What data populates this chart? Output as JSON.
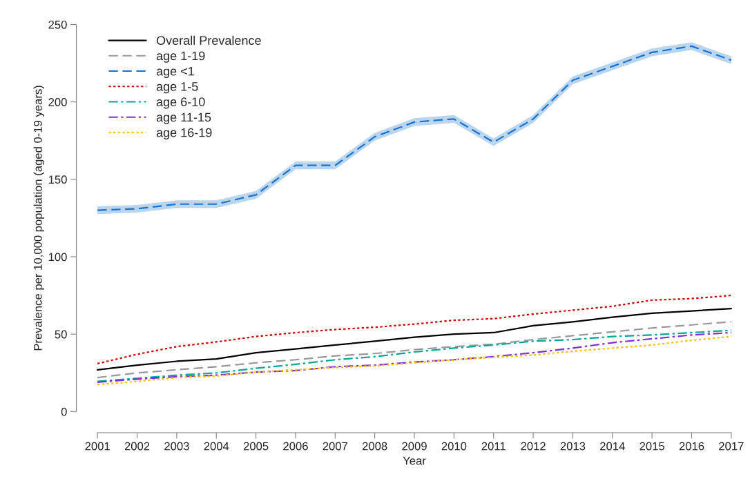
{
  "chart_data": {
    "type": "line",
    "xlabel": "Year",
    "ylabel": "Prevalence per 10,000 population (aged 0-19 years)",
    "x": [
      2001,
      2002,
      2003,
      2004,
      2005,
      2006,
      2007,
      2008,
      2009,
      2010,
      2011,
      2012,
      2013,
      2014,
      2015,
      2016,
      2017
    ],
    "xlim": [
      2001,
      2017
    ],
    "xticks": [
      2001,
      2002,
      2003,
      2004,
      2005,
      2006,
      2007,
      2008,
      2009,
      2010,
      2011,
      2012,
      2013,
      2014,
      2015,
      2016,
      2017
    ],
    "ylim": [
      0,
      250
    ],
    "yticks": [
      0,
      50,
      100,
      150,
      200,
      250
    ],
    "grid": false,
    "legend": "top left",
    "marker": "none",
    "series": [
      {
        "name": "Overall Prevalence",
        "color": "#000000",
        "line_style": "solid",
        "values": [
          27,
          30,
          32.5,
          34,
          38,
          40.5,
          43,
          45.5,
          48,
          50,
          51,
          55.5,
          58,
          61,
          63.5,
          65,
          66.5
        ]
      },
      {
        "name": "age 1-19",
        "color": "#999999",
        "line_style": "dashed",
        "values": [
          22,
          25,
          27,
          29,
          31.5,
          33.5,
          36,
          37.5,
          40,
          42,
          43.5,
          46.5,
          49,
          51.5,
          54,
          56,
          58
        ]
      },
      {
        "name": "age <1",
        "color": "#1874cd",
        "line_style": "dashed",
        "values": [
          130,
          131,
          134,
          134,
          140,
          159,
          159,
          177.5,
          187,
          189,
          174,
          189,
          214,
          223,
          232,
          236,
          227
        ],
        "lower": [
          127.5,
          128.5,
          131.5,
          131.5,
          137.5,
          156.5,
          156.5,
          175,
          184.5,
          186.5,
          171.5,
          186.5,
          211.5,
          220.5,
          229.5,
          233.5,
          224.5
        ],
        "upper": [
          132.5,
          133.5,
          136.5,
          136.5,
          142.5,
          161.5,
          161.5,
          180,
          189.5,
          191.5,
          176.5,
          191.5,
          216.5,
          225.5,
          234.5,
          238.5,
          229.5
        ]
      },
      {
        "name": "age 1-5",
        "color": "#cc0000",
        "line_style": "dotted",
        "values": [
          31,
          37,
          42,
          45,
          48.5,
          51,
          53,
          54.5,
          56.5,
          59,
          60,
          63,
          65.5,
          68,
          72,
          73,
          75
        ]
      },
      {
        "name": "age 6-10",
        "color": "#00a89a",
        "line_style": "dashdot",
        "values": [
          19.5,
          21.5,
          23.5,
          25,
          28,
          30.5,
          33.5,
          35.5,
          38.5,
          41,
          43,
          45.5,
          46.5,
          48.5,
          49.5,
          51,
          52.5
        ]
      },
      {
        "name": "age 11-15",
        "color": "#7b2fd6",
        "line_style": "dashdot",
        "values": [
          19,
          21,
          22.5,
          23.5,
          25.5,
          26.5,
          29,
          30,
          32,
          33.5,
          35.5,
          38,
          41,
          44.5,
          47,
          49.5,
          51
        ]
      },
      {
        "name": "age 16-19",
        "color": "#ffc000",
        "line_style": "dotted",
        "values": [
          17.5,
          19.5,
          22,
          23,
          25.5,
          27,
          28.5,
          29.5,
          31.5,
          33.5,
          35,
          36.5,
          39,
          41,
          43,
          46,
          48.5
        ]
      }
    ]
  }
}
